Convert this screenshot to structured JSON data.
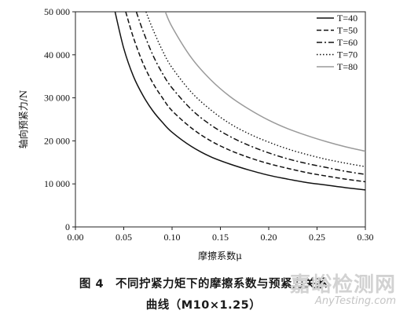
{
  "chart_data": {
    "type": "line",
    "xlabel": "摩擦系数μ",
    "ylabel": "轴向预紧力/N",
    "xlim": [
      0,
      0.3
    ],
    "ylim": [
      0,
      50000
    ],
    "xticks": [
      "0.00",
      "0.05",
      "0.10",
      "0.15",
      "0.20",
      "0.25",
      "0.30"
    ],
    "yticks": [
      "0",
      "10 000",
      "20 000",
      "30 000",
      "40 000",
      "50 000"
    ],
    "grid": false,
    "legend_position": "top-right",
    "series": [
      {
        "name": "T=40",
        "style": "solid",
        "color": "#111111",
        "x": [
          0.041,
          0.05,
          0.06,
          0.07,
          0.08,
          0.09,
          0.1,
          0.12,
          0.14,
          0.16,
          0.18,
          0.2,
          0.22,
          0.24,
          0.26,
          0.28,
          0.3
        ],
        "y": [
          50000,
          41500,
          35000,
          30500,
          27000,
          24300,
          22000,
          18700,
          16300,
          14600,
          13200,
          12000,
          11100,
          10300,
          9700,
          9100,
          8600
        ]
      },
      {
        "name": "T=50",
        "style": "dashed",
        "color": "#111111",
        "x": [
          0.052,
          0.06,
          0.07,
          0.08,
          0.09,
          0.1,
          0.12,
          0.14,
          0.16,
          0.18,
          0.2,
          0.22,
          0.24,
          0.26,
          0.28,
          0.3
        ],
        "y": [
          50000,
          44000,
          38000,
          33500,
          30000,
          27000,
          23000,
          20000,
          17800,
          16100,
          14700,
          13600,
          12600,
          11800,
          11100,
          10500
        ]
      },
      {
        "name": "T=60",
        "style": "dashdot",
        "color": "#111111",
        "x": [
          0.063,
          0.07,
          0.08,
          0.09,
          0.1,
          0.12,
          0.14,
          0.16,
          0.18,
          0.2,
          0.22,
          0.24,
          0.26,
          0.28,
          0.3
        ],
        "y": [
          50000,
          45500,
          40000,
          35700,
          32300,
          27300,
          23700,
          21000,
          18900,
          17200,
          15800,
          14700,
          13800,
          12900,
          12200
        ]
      },
      {
        "name": "T=70",
        "style": "dotted",
        "color": "#111111",
        "x": [
          0.073,
          0.08,
          0.09,
          0.1,
          0.12,
          0.14,
          0.16,
          0.18,
          0.2,
          0.22,
          0.24,
          0.26,
          0.28,
          0.3
        ],
        "y": [
          50000,
          46000,
          41000,
          37000,
          31300,
          27200,
          24000,
          21600,
          19700,
          18100,
          16800,
          15700,
          14800,
          14000
        ]
      },
      {
        "name": "T=80",
        "style": "solid",
        "color": "#9a9a9a",
        "x": [
          0.093,
          0.1,
          0.12,
          0.14,
          0.16,
          0.18,
          0.2,
          0.22,
          0.24,
          0.26,
          0.28,
          0.3
        ],
        "y": [
          50000,
          46500,
          39300,
          34200,
          30300,
          27300,
          24800,
          22800,
          21200,
          19800,
          18600,
          17600
        ]
      }
    ]
  },
  "caption": {
    "line1": "图 4　不同拧紧力矩下的摩擦系数与预紧力关系",
    "line2": "曲线（M10×1.25）"
  },
  "watermark": {
    "cn": "嘉峪检测网",
    "en": "AnyTesting.com"
  }
}
